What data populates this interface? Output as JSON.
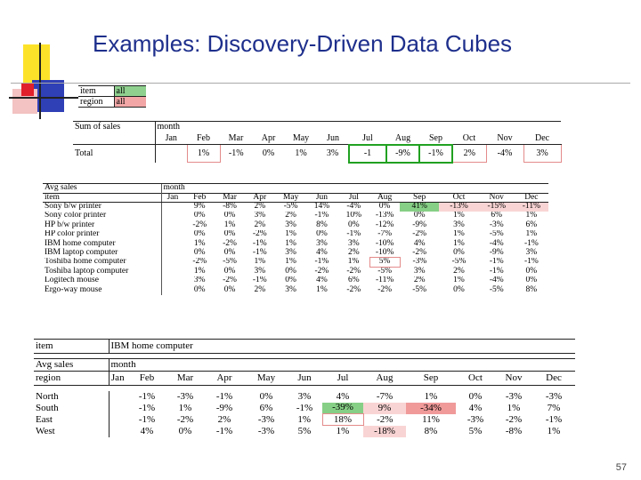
{
  "slide": {
    "title": "Examples: Discovery-Driven Data Cubes",
    "page_number": "57"
  },
  "selector": {
    "rows": [
      {
        "label": "item",
        "value": "all"
      },
      {
        "label": "region",
        "value": "all"
      }
    ]
  },
  "table1": {
    "corner": "Sum of sales",
    "dim": "month",
    "months": [
      "Jan",
      "Feb",
      "Mar",
      "Apr",
      "May",
      "Jun",
      "Jul",
      "Aug",
      "Sep",
      "Oct",
      "Nov",
      "Dec"
    ],
    "row_label": "Total",
    "values": [
      "",
      "1%",
      "-1%",
      "0%",
      "1%",
      "3%",
      "-1",
      "-9%",
      "-1%",
      "2%",
      "-4%",
      "3%"
    ]
  },
  "table2": {
    "corner": "Avg sales",
    "dim": "month",
    "row_dim": "item",
    "months": [
      "Jan",
      "Feb",
      "Mar",
      "Apr",
      "May",
      "Jun",
      "Jul",
      "Aug",
      "Sep",
      "Oct",
      "Nov",
      "Dec"
    ],
    "rows": [
      {
        "label": "Sony b/w printer",
        "values": [
          "",
          "9%",
          "-8%",
          "2%",
          "-5%",
          "14%",
          "-4%",
          "0%",
          "41%",
          "-13%",
          "-15%",
          "-11%"
        ]
      },
      {
        "label": "Sony color printer",
        "values": [
          "",
          "0%",
          "0%",
          "3%",
          "2%",
          "-1%",
          "10%",
          "-13%",
          "0%",
          "1%",
          "6%",
          "1%"
        ]
      },
      {
        "label": "HP b/w printer",
        "values": [
          "",
          "-2%",
          "1%",
          "2%",
          "3%",
          "8%",
          "0%",
          "-12%",
          "-9%",
          "3%",
          "-3%",
          "6%"
        ]
      },
      {
        "label": "HP color printer",
        "values": [
          "",
          "0%",
          "0%",
          "-2%",
          "1%",
          "0%",
          "-1%",
          "-7%",
          "-2%",
          "1%",
          "-5%",
          "1%"
        ]
      },
      {
        "label": "IBM home computer",
        "values": [
          "",
          "1%",
          "-2%",
          "-1%",
          "1%",
          "3%",
          "3%",
          "-10%",
          "4%",
          "1%",
          "-4%",
          "-1%"
        ]
      },
      {
        "label": "IBM laptop computer",
        "values": [
          "",
          "0%",
          "0%",
          "-1%",
          "3%",
          "4%",
          "2%",
          "-10%",
          "-2%",
          "0%",
          "-9%",
          "3%"
        ]
      },
      {
        "label": "Toshiba home computer",
        "values": [
          "",
          "-2%",
          "-5%",
          "1%",
          "1%",
          "-1%",
          "1%",
          "5%",
          "-3%",
          "-5%",
          "-1%",
          "-1%"
        ]
      },
      {
        "label": "Toshiba laptop computer",
        "values": [
          "",
          "1%",
          "0%",
          "3%",
          "0%",
          "-2%",
          "-2%",
          "-5%",
          "3%",
          "2%",
          "-1%",
          "0%"
        ]
      },
      {
        "label": "Logitech mouse",
        "values": [
          "",
          "3%",
          "-2%",
          "-1%",
          "0%",
          "4%",
          "6%",
          "-11%",
          "2%",
          "1%",
          "-4%",
          "0%"
        ]
      },
      {
        "label": "Ergo-way mouse",
        "values": [
          "",
          "0%",
          "0%",
          "2%",
          "3%",
          "1%",
          "-2%",
          "-2%",
          "-5%",
          "0%",
          "-5%",
          "8%"
        ]
      }
    ]
  },
  "table3": {
    "item_label": "item",
    "item_value": "IBM home computer",
    "corner": "Avg sales",
    "dim": "month",
    "row_dim": "region",
    "months": [
      "Jan",
      "Feb",
      "Mar",
      "Apr",
      "May",
      "Jun",
      "Jul",
      "Aug",
      "Sep",
      "Oct",
      "Nov",
      "Dec"
    ],
    "rows": [
      {
        "label": "North",
        "values": [
          "",
          "-1%",
          "-3%",
          "-1%",
          "0%",
          "3%",
          "4%",
          "-7%",
          "1%",
          "0%",
          "-3%",
          "-3%"
        ]
      },
      {
        "label": "South",
        "values": [
          "",
          "-1%",
          "1%",
          "-9%",
          "6%",
          "-1%",
          "-39%",
          "9%",
          "-34%",
          "4%",
          "1%",
          "7%"
        ]
      },
      {
        "label": "East",
        "values": [
          "",
          "-1%",
          "-2%",
          "2%",
          "-3%",
          "1%",
          "18%",
          "-2%",
          "11%",
          "-3%",
          "-2%",
          "-1%"
        ]
      },
      {
        "label": "West",
        "values": [
          "",
          "4%",
          "0%",
          "-1%",
          "-3%",
          "5%",
          "1%",
          "-18%",
          "8%",
          "5%",
          "-8%",
          "1%"
        ]
      }
    ]
  }
}
